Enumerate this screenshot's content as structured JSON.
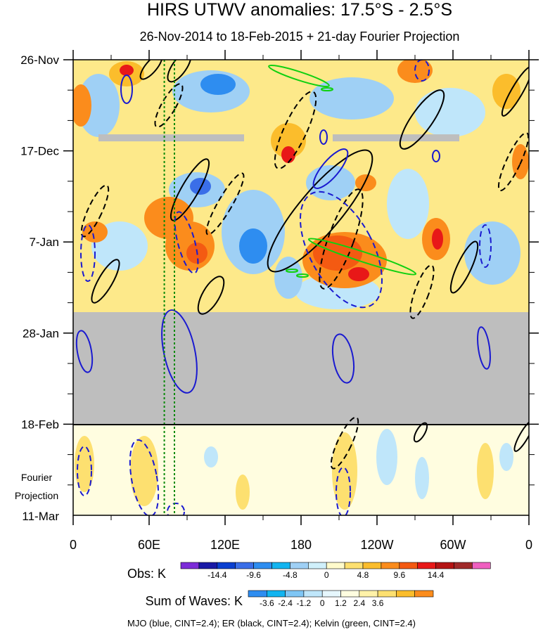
{
  "chart_data": {
    "type": "heatmap",
    "title": "HIRS UTWV anomalies: 17.5°S - 2.5°S",
    "subtitle": "26-Nov-2014 to 18-Feb-2015 + 21-day Fourier Projection",
    "x_ticks": [
      "0",
      "60E",
      "120E",
      "180",
      "120W",
      "60W",
      "0"
    ],
    "x_tick_lon": [
      0,
      60,
      120,
      180,
      240,
      300,
      360
    ],
    "y_ticks": [
      "26-Nov",
      "17-Dec",
      "7-Jan",
      "28-Jan",
      "18-Feb"
    ],
    "y_tick_day": [
      0,
      21,
      42,
      63,
      84
    ],
    "y_end_label": "11-Mar",
    "y_end_day": 105,
    "projection_label_line1": "Fourier",
    "projection_label_line2": "Projection",
    "missing_data_start_day": 58,
    "projection_start_day": 84,
    "grey_bars": [
      {
        "day": 18,
        "lon_start": 20,
        "lon_end": 135
      },
      {
        "day": 18,
        "lon_start": 205,
        "lon_end": 305
      }
    ],
    "green_dotted_lons": [
      72,
      80
    ],
    "obs_legend": {
      "label": "Obs: K",
      "tick_labels": [
        "-14.4",
        "-9.6",
        "-4.8",
        "0",
        "4.8",
        "9.6",
        "14.4"
      ],
      "colors": [
        "#7c2cd8",
        "#1a1aa6",
        "#0a3fd0",
        "#3a6ee8",
        "#2e8df0",
        "#12b4f0",
        "#9fd0f5",
        "#d0f0fb",
        "#fffbcc",
        "#fde070",
        "#fbbd2c",
        "#fb8c1c",
        "#f45a12",
        "#e81818",
        "#b41414",
        "#a02a2a",
        "#f060c0"
      ]
    },
    "sow_legend": {
      "label": "Sum of Waves: K",
      "tick_labels": [
        "-3.6",
        "-2.4",
        "-1.2",
        "0",
        "1.2",
        "2.4",
        "3.6"
      ],
      "colors": [
        "#2e8df0",
        "#12b4f0",
        "#7fc6f5",
        "#bfe6fa",
        "#e6f7fd",
        "#fffde0",
        "#fff2a8",
        "#fde070",
        "#fbbd2c",
        "#fb8c1c"
      ]
    },
    "contour_series": [
      {
        "name": "MJO",
        "color": "blue",
        "cint": 2.4
      },
      {
        "name": "ER",
        "color": "black",
        "cint": 2.4
      },
      {
        "name": "Kelvin",
        "color": "green",
        "cint": 2.4
      }
    ],
    "footer": "MJO (blue, CINT=2.4); ER (black, CINT=2.4); Kelvin (green, CINT=2.4)",
    "xlabel": "",
    "ylabel": ""
  }
}
